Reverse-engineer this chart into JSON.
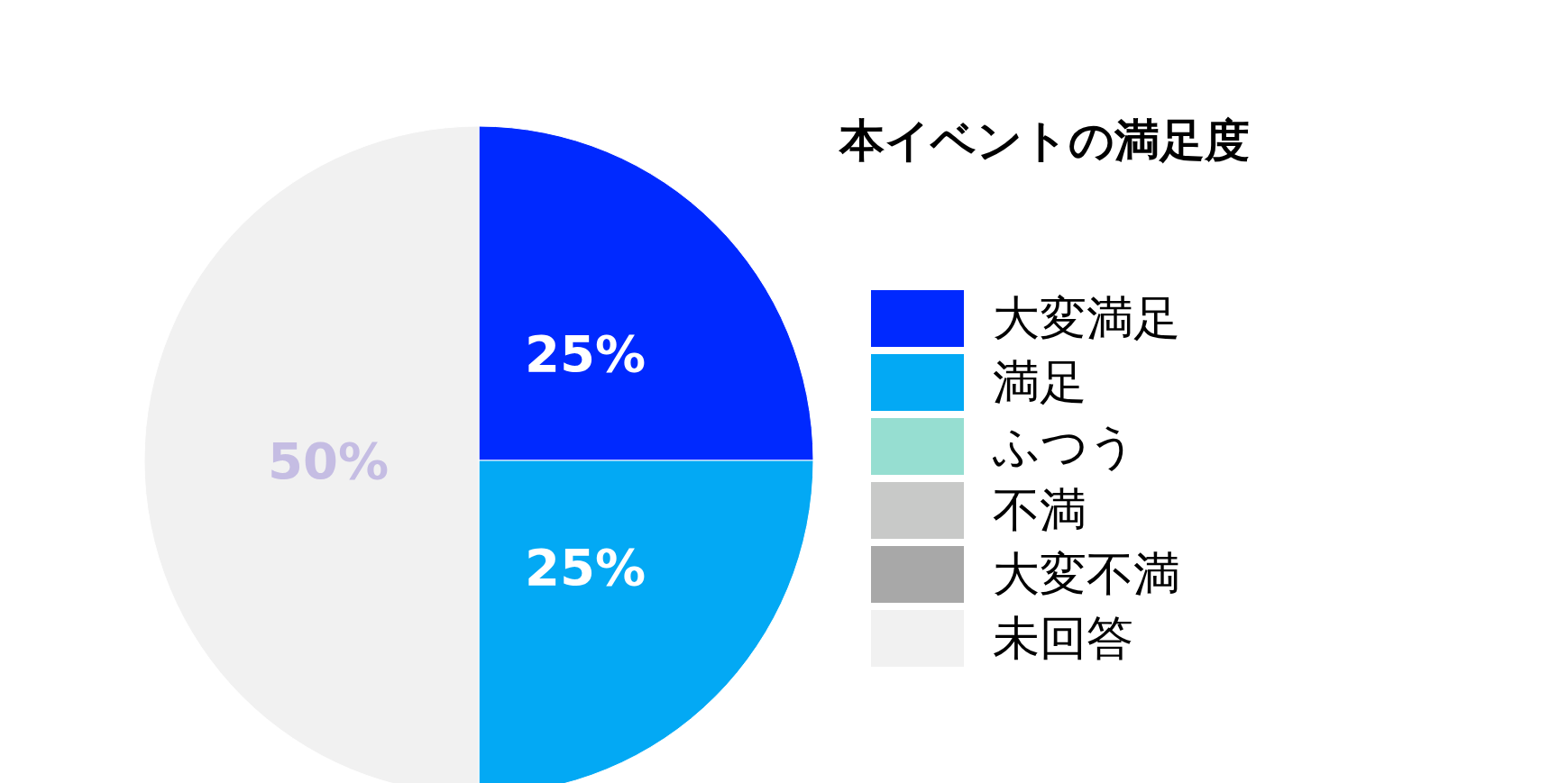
{
  "chart_data": {
    "type": "pie",
    "title": "本イベントの満足度",
    "categories": [
      "大変満足",
      "満足",
      "ふつう",
      "不満",
      "大変不満",
      "未回答"
    ],
    "values": [
      25,
      25,
      0,
      0,
      0,
      50
    ],
    "colors": [
      "#0029ff",
      "#03a9f4",
      "#96ded1",
      "#c8c9c8",
      "#a8a8a8",
      "#f1f1f1"
    ],
    "value_labels": [
      "25%",
      "25%",
      null,
      null,
      null,
      "50%"
    ],
    "legend": "right"
  }
}
